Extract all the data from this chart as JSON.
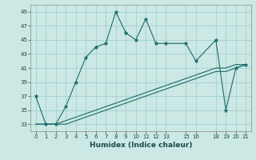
{
  "xlabel": "Humidex (Indice chaleur)",
  "ylabel": "",
  "background_color": "#cce8e4",
  "grid_color": "#99cccc",
  "line_color": "#1a6b6b",
  "xlim": [
    -0.5,
    21.5
  ],
  "ylim": [
    32,
    50
  ],
  "yticks": [
    33,
    35,
    37,
    39,
    41,
    43,
    45,
    47,
    49
  ],
  "xtick_positions": [
    0,
    1,
    2,
    3,
    4,
    5,
    6,
    7,
    8,
    9,
    10,
    11,
    12,
    13,
    15,
    16,
    18,
    19,
    20,
    21
  ],
  "xtick_labels": [
    "0",
    "1",
    "2",
    "3",
    "4",
    "5",
    "6",
    "7",
    "8",
    "9",
    "10",
    "11",
    "12",
    "13",
    "15",
    "16",
    "18",
    "19",
    "20",
    "21"
  ],
  "line1_x": [
    0,
    1,
    2,
    3,
    4,
    5,
    6,
    7,
    8,
    9,
    10,
    11,
    12,
    13,
    15,
    16,
    18,
    19,
    20,
    21
  ],
  "line1_y": [
    37,
    33,
    33,
    35.5,
    39,
    42.5,
    44,
    44.5,
    49,
    46,
    45,
    48,
    44.5,
    44.5,
    44.5,
    42,
    45,
    35,
    41,
    41.5
  ],
  "line2_x": [
    0,
    1,
    2,
    3,
    4,
    5,
    6,
    7,
    8,
    9,
    10,
    11,
    12,
    13,
    15,
    16,
    18,
    19,
    20,
    21
  ],
  "line2_y": [
    33,
    33,
    33,
    33.5,
    34,
    34.5,
    35,
    35.5,
    36,
    36.5,
    37,
    37.5,
    38,
    38.5,
    39.5,
    40,
    41,
    41,
    41.5,
    41.5
  ],
  "line3_x": [
    0,
    1,
    2,
    3,
    4,
    5,
    6,
    7,
    8,
    9,
    10,
    11,
    12,
    13,
    15,
    16,
    18,
    19,
    20,
    21
  ],
  "line3_y": [
    33,
    33,
    33,
    33,
    33.5,
    34,
    34.5,
    35,
    35.5,
    36,
    36.5,
    37,
    37.5,
    38,
    39,
    39.5,
    40.5,
    40.5,
    41,
    41.5
  ]
}
